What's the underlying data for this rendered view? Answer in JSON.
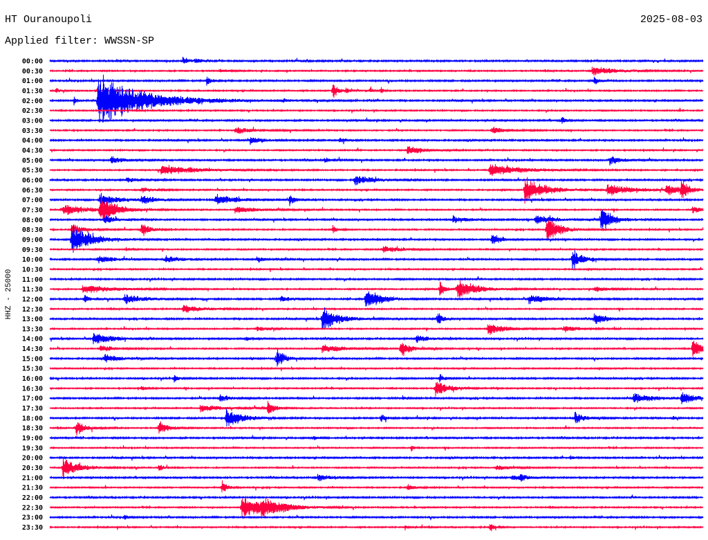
{
  "header": {
    "station": "HT Ouranoupoli",
    "date": "2025-08-03",
    "filter": "Applied filter: WWSSN-SP"
  },
  "chart_data": {
    "type": "line",
    "subtype": "helicorder",
    "title": "HT Ouranoupoli",
    "ylabel": "HHZ - 25000",
    "xlabel": "",
    "minutes_per_row": 30,
    "row_labels": [
      "00:00",
      "00:30",
      "01:00",
      "01:30",
      "02:00",
      "02:30",
      "03:00",
      "03:30",
      "04:00",
      "04:30",
      "05:00",
      "05:30",
      "06:00",
      "06:30",
      "07:00",
      "07:30",
      "08:00",
      "08:30",
      "09:00",
      "09:30",
      "10:00",
      "10:30",
      "11:00",
      "11:30",
      "12:00",
      "12:30",
      "13:00",
      "13:30",
      "14:00",
      "14:30",
      "15:00",
      "15:30",
      "16:00",
      "16:30",
      "17:00",
      "17:30",
      "18:00",
      "18:30",
      "19:00",
      "19:30",
      "20:00",
      "20:30",
      "21:00",
      "21:30",
      "22:00",
      "22:30",
      "23:00",
      "23:30"
    ],
    "colors": [
      "#0000ff",
      "#ff0040"
    ],
    "events": [
      {
        "row": 0,
        "minute": 6.1,
        "amp": 0.5,
        "dur": 0.4
      },
      {
        "row": 0,
        "minute": 6.7,
        "amp": 0.4,
        "dur": 0.3
      },
      {
        "row": 1,
        "minute": 24.9,
        "amp": 0.5,
        "dur": 1.5
      },
      {
        "row": 1,
        "minute": 7.8,
        "amp": 0.2,
        "dur": 0.5
      },
      {
        "row": 2,
        "minute": 7.2,
        "amp": 0.6,
        "dur": 0.3
      },
      {
        "row": 2,
        "minute": 25.0,
        "amp": 0.5,
        "dur": 0.3
      },
      {
        "row": 3,
        "minute": 0.3,
        "amp": 0.4,
        "dur": 0.2
      },
      {
        "row": 3,
        "minute": 13.0,
        "amp": 1.2,
        "dur": 0.3
      },
      {
        "row": 3,
        "minute": 13.6,
        "amp": 0.4,
        "dur": 0.2
      },
      {
        "row": 3,
        "minute": 14.7,
        "amp": 0.4,
        "dur": 0.2
      },
      {
        "row": 3,
        "minute": 15.2,
        "amp": 0.4,
        "dur": 0.2
      },
      {
        "row": 4,
        "minute": 1.1,
        "amp": 0.6,
        "dur": 0.2
      },
      {
        "row": 4,
        "minute": 2.2,
        "amp": 3.0,
        "dur": 3.0
      },
      {
        "row": 4,
        "minute": 10.7,
        "amp": 0.2,
        "dur": 0.5
      },
      {
        "row": 6,
        "minute": 23.5,
        "amp": 0.5,
        "dur": 0.3
      },
      {
        "row": 7,
        "minute": 8.5,
        "amp": 0.4,
        "dur": 1.2
      },
      {
        "row": 7,
        "minute": 20.3,
        "amp": 0.4,
        "dur": 1.0
      },
      {
        "row": 8,
        "minute": 9.2,
        "amp": 0.5,
        "dur": 0.8
      },
      {
        "row": 8,
        "minute": 13.3,
        "amp": 0.3,
        "dur": 0.5
      },
      {
        "row": 9,
        "minute": 16.4,
        "amp": 0.5,
        "dur": 1.2
      },
      {
        "row": 10,
        "minute": 2.8,
        "amp": 0.5,
        "dur": 0.8
      },
      {
        "row": 10,
        "minute": 12.6,
        "amp": 0.3,
        "dur": 0.4
      },
      {
        "row": 10,
        "minute": 25.7,
        "amp": 0.5,
        "dur": 0.8
      },
      {
        "row": 11,
        "minute": 5.1,
        "amp": 0.6,
        "dur": 2.2
      },
      {
        "row": 11,
        "minute": 20.2,
        "amp": 0.8,
        "dur": 2.0
      },
      {
        "row": 12,
        "minute": 14.0,
        "amp": 0.6,
        "dur": 1.2
      },
      {
        "row": 12,
        "minute": 3.5,
        "amp": 0.3,
        "dur": 1.0
      },
      {
        "row": 13,
        "minute": 21.8,
        "amp": 1.6,
        "dur": 1.2
      },
      {
        "row": 13,
        "minute": 25.6,
        "amp": 0.7,
        "dur": 1.6
      },
      {
        "row": 13,
        "minute": 28.3,
        "amp": 0.6,
        "dur": 1.0
      },
      {
        "row": 13,
        "minute": 29.0,
        "amp": 1.2,
        "dur": 0.4
      },
      {
        "row": 13,
        "minute": 4.2,
        "amp": 0.3,
        "dur": 0.8
      },
      {
        "row": 14,
        "minute": 2.3,
        "amp": 0.7,
        "dur": 1.2
      },
      {
        "row": 14,
        "minute": 4.2,
        "amp": 0.5,
        "dur": 0.8
      },
      {
        "row": 14,
        "minute": 7.6,
        "amp": 0.6,
        "dur": 1.5
      },
      {
        "row": 14,
        "minute": 11.0,
        "amp": 0.8,
        "dur": 0.3
      },
      {
        "row": 15,
        "minute": 0.6,
        "amp": 0.6,
        "dur": 1.8
      },
      {
        "row": 15,
        "minute": 2.3,
        "amp": 1.6,
        "dur": 1.0
      },
      {
        "row": 15,
        "minute": 8.5,
        "amp": 0.4,
        "dur": 1.5
      },
      {
        "row": 15,
        "minute": 29.5,
        "amp": 0.4,
        "dur": 1.0
      },
      {
        "row": 16,
        "minute": 18.5,
        "amp": 0.4,
        "dur": 1.0
      },
      {
        "row": 16,
        "minute": 22.3,
        "amp": 0.6,
        "dur": 1.0
      },
      {
        "row": 16,
        "minute": 25.3,
        "amp": 1.5,
        "dur": 0.8
      },
      {
        "row": 16,
        "minute": 2.5,
        "amp": 0.5,
        "dur": 0.8
      },
      {
        "row": 17,
        "minute": 4.2,
        "amp": 1.0,
        "dur": 0.5
      },
      {
        "row": 17,
        "minute": 13.0,
        "amp": 0.5,
        "dur": 0.3
      },
      {
        "row": 17,
        "minute": 22.8,
        "amp": 1.8,
        "dur": 0.8
      },
      {
        "row": 17,
        "minute": 1.0,
        "amp": 0.6,
        "dur": 0.8
      },
      {
        "row": 18,
        "minute": 1.0,
        "amp": 1.8,
        "dur": 1.2
      },
      {
        "row": 18,
        "minute": 20.3,
        "amp": 0.8,
        "dur": 0.5
      },
      {
        "row": 19,
        "minute": 15.3,
        "amp": 0.5,
        "dur": 1.0
      },
      {
        "row": 19,
        "minute": 3.5,
        "amp": 0.3,
        "dur": 0.3
      },
      {
        "row": 20,
        "minute": 2.2,
        "amp": 0.5,
        "dur": 1.0
      },
      {
        "row": 20,
        "minute": 5.3,
        "amp": 0.4,
        "dur": 1.0
      },
      {
        "row": 20,
        "minute": 24.0,
        "amp": 1.3,
        "dur": 0.6
      },
      {
        "row": 20,
        "minute": 9.5,
        "amp": 0.3,
        "dur": 0.8
      },
      {
        "row": 23,
        "minute": 1.5,
        "amp": 0.5,
        "dur": 2.0
      },
      {
        "row": 23,
        "minute": 17.9,
        "amp": 1.0,
        "dur": 0.3
      },
      {
        "row": 23,
        "minute": 18.7,
        "amp": 1.2,
        "dur": 1.2
      },
      {
        "row": 23,
        "minute": 25.0,
        "amp": 0.3,
        "dur": 1.0
      },
      {
        "row": 24,
        "minute": 1.6,
        "amp": 0.6,
        "dur": 0.3
      },
      {
        "row": 24,
        "minute": 3.4,
        "amp": 0.6,
        "dur": 1.2
      },
      {
        "row": 24,
        "minute": 14.5,
        "amp": 1.3,
        "dur": 1.0
      },
      {
        "row": 24,
        "minute": 22.0,
        "amp": 0.5,
        "dur": 1.5
      },
      {
        "row": 24,
        "minute": 10.6,
        "amp": 0.4,
        "dur": 0.6
      },
      {
        "row": 25,
        "minute": 6.1,
        "amp": 0.5,
        "dur": 1.2
      },
      {
        "row": 26,
        "minute": 12.5,
        "amp": 1.5,
        "dur": 1.0
      },
      {
        "row": 26,
        "minute": 17.8,
        "amp": 1.0,
        "dur": 0.3
      },
      {
        "row": 26,
        "minute": 25.0,
        "amp": 0.7,
        "dur": 0.8
      },
      {
        "row": 27,
        "minute": 20.1,
        "amp": 0.7,
        "dur": 1.2
      },
      {
        "row": 27,
        "minute": 23.6,
        "amp": 0.4,
        "dur": 1.0
      },
      {
        "row": 27,
        "minute": 9.5,
        "amp": 0.3,
        "dur": 0.8
      },
      {
        "row": 28,
        "minute": 2.0,
        "amp": 0.7,
        "dur": 1.2
      },
      {
        "row": 28,
        "minute": 16.8,
        "amp": 0.5,
        "dur": 0.8
      },
      {
        "row": 28,
        "minute": 9.0,
        "amp": 0.3,
        "dur": 0.3
      },
      {
        "row": 29,
        "minute": 2.3,
        "amp": 0.4,
        "dur": 1.0
      },
      {
        "row": 29,
        "minute": 12.5,
        "amp": 0.5,
        "dur": 1.5
      },
      {
        "row": 29,
        "minute": 16.1,
        "amp": 1.0,
        "dur": 0.6
      },
      {
        "row": 29,
        "minute": 29.5,
        "amp": 1.3,
        "dur": 0.6
      },
      {
        "row": 30,
        "minute": 2.5,
        "amp": 0.5,
        "dur": 1.0
      },
      {
        "row": 30,
        "minute": 10.4,
        "amp": 1.2,
        "dur": 0.5
      },
      {
        "row": 30,
        "minute": 9.2,
        "amp": 0.3,
        "dur": 0.2
      },
      {
        "row": 32,
        "minute": 5.7,
        "amp": 0.5,
        "dur": 0.3
      },
      {
        "row": 32,
        "minute": 17.9,
        "amp": 0.5,
        "dur": 0.3
      },
      {
        "row": 33,
        "minute": 17.7,
        "amp": 1.0,
        "dur": 0.8
      },
      {
        "row": 33,
        "minute": 4.2,
        "amp": 0.3,
        "dur": 0.3
      },
      {
        "row": 34,
        "minute": 7.8,
        "amp": 0.5,
        "dur": 0.6
      },
      {
        "row": 34,
        "minute": 26.8,
        "amp": 0.5,
        "dur": 1.5
      },
      {
        "row": 34,
        "minute": 29.0,
        "amp": 0.7,
        "dur": 0.8
      },
      {
        "row": 34,
        "minute": 16.2,
        "amp": 0.3,
        "dur": 0.3
      },
      {
        "row": 35,
        "minute": 6.9,
        "amp": 0.4,
        "dur": 1.5
      },
      {
        "row": 35,
        "minute": 10.0,
        "amp": 1.0,
        "dur": 0.4
      },
      {
        "row": 36,
        "minute": 8.1,
        "amp": 1.2,
        "dur": 1.0
      },
      {
        "row": 36,
        "minute": 15.2,
        "amp": 0.6,
        "dur": 0.3
      },
      {
        "row": 36,
        "minute": 24.1,
        "amp": 0.7,
        "dur": 0.6
      },
      {
        "row": 36,
        "minute": 28.6,
        "amp": 0.3,
        "dur": 0.2
      },
      {
        "row": 37,
        "minute": 1.2,
        "amp": 0.9,
        "dur": 0.6
      },
      {
        "row": 37,
        "minute": 5.0,
        "amp": 0.9,
        "dur": 0.6
      },
      {
        "row": 38,
        "minute": 12.1,
        "amp": 0.3,
        "dur": 0.3
      },
      {
        "row": 39,
        "minute": 16.6,
        "amp": 0.4,
        "dur": 0.2
      },
      {
        "row": 40,
        "minute": 23.9,
        "amp": 0.3,
        "dur": 0.2
      },
      {
        "row": 41,
        "minute": 0.6,
        "amp": 1.2,
        "dur": 1.0
      },
      {
        "row": 41,
        "minute": 5.0,
        "amp": 0.5,
        "dur": 0.3
      },
      {
        "row": 41,
        "minute": 20.5,
        "amp": 0.3,
        "dur": 1.0
      },
      {
        "row": 42,
        "minute": 12.3,
        "amp": 0.4,
        "dur": 0.8
      },
      {
        "row": 42,
        "minute": 21.2,
        "amp": 0.4,
        "dur": 0.5
      },
      {
        "row": 42,
        "minute": 21.6,
        "amp": 0.4,
        "dur": 0.5
      },
      {
        "row": 43,
        "minute": 7.9,
        "amp": 1.0,
        "dur": 0.3
      },
      {
        "row": 43,
        "minute": 16.4,
        "amp": 0.4,
        "dur": 0.5
      },
      {
        "row": 45,
        "minute": 8.8,
        "amp": 1.4,
        "dur": 1.5
      },
      {
        "row": 45,
        "minute": 9.7,
        "amp": 0.8,
        "dur": 1.5
      },
      {
        "row": 46,
        "minute": 3.4,
        "amp": 0.3,
        "dur": 0.3
      },
      {
        "row": 47,
        "minute": 20.2,
        "amp": 0.6,
        "dur": 0.3
      },
      {
        "row": 47,
        "minute": 16.3,
        "amp": 0.3,
        "dur": 0.2
      }
    ]
  }
}
